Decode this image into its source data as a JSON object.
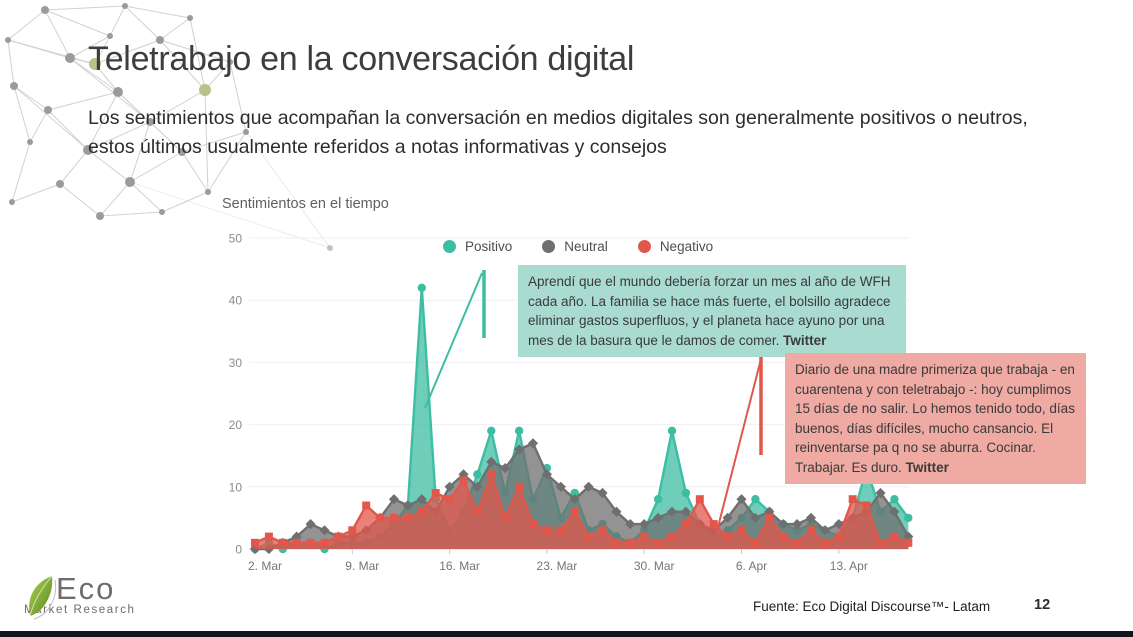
{
  "slide": {
    "title": "Teletrabajo en la conversación digital",
    "subtitle": "Los sentimientos que acompañan la conversación en medios digitales son generalmente positivos o neutros, estos últimos usualmente referidos a notas informativas y consejos"
  },
  "chart_data": {
    "type": "area",
    "title": "Sentimientos en el tiempo",
    "xlabel": "",
    "ylabel": "",
    "ylim": [
      0,
      50
    ],
    "yticks": [
      0,
      10,
      20,
      30,
      40,
      50
    ],
    "grid": true,
    "legend_position": "top-center",
    "x_tick_labels": [
      "2. Mar",
      "9. Mar",
      "16. Mar",
      "23. Mar",
      "30. Mar",
      "6. Apr",
      "13. Apr"
    ],
    "x_tick_indices": [
      0,
      7,
      14,
      21,
      28,
      35,
      42
    ],
    "x": [
      "2 Mar",
      "3 Mar",
      "4 Mar",
      "5 Mar",
      "6 Mar",
      "7 Mar",
      "8 Mar",
      "9 Mar",
      "10 Mar",
      "11 Mar",
      "12 Mar",
      "13 Mar",
      "14 Mar",
      "15 Mar",
      "16 Mar",
      "17 Mar",
      "18 Mar",
      "19 Mar",
      "20 Mar",
      "21 Mar",
      "22 Mar",
      "23 Mar",
      "24 Mar",
      "25 Mar",
      "26 Mar",
      "27 Mar",
      "28 Mar",
      "29 Mar",
      "30 Mar",
      "31 Mar",
      "1 Apr",
      "2 Apr",
      "3 Apr",
      "4 Apr",
      "5 Apr",
      "6 Apr",
      "7 Apr",
      "8 Apr",
      "9 Apr",
      "10 Apr",
      "11 Apr",
      "12 Apr",
      "13 Apr",
      "14 Apr",
      "15 Apr",
      "16 Apr",
      "17 Apr",
      "18 Apr"
    ],
    "series": [
      {
        "name": "Positivo",
        "color": "#3dbea3",
        "marker": "circle",
        "values": [
          0,
          1,
          0,
          1,
          1,
          0,
          1,
          1,
          1,
          2,
          4,
          7,
          42,
          8,
          3,
          6,
          12,
          19,
          9,
          19,
          8,
          13,
          5,
          9,
          3,
          4,
          2,
          1,
          3,
          8,
          19,
          9,
          4,
          2,
          3,
          5,
          8,
          6,
          4,
          3,
          4,
          3,
          2,
          5,
          13,
          6,
          8,
          5
        ]
      },
      {
        "name": "Neutral",
        "color": "#6f6f6f",
        "marker": "diamond",
        "values": [
          0,
          0,
          1,
          2,
          4,
          3,
          2,
          2,
          3,
          5,
          8,
          7,
          8,
          6,
          10,
          12,
          10,
          14,
          13,
          16,
          17,
          12,
          10,
          8,
          10,
          9,
          6,
          4,
          4,
          5,
          6,
          6,
          4,
          3,
          5,
          8,
          5,
          6,
          4,
          4,
          5,
          3,
          4,
          5,
          6,
          9,
          6,
          2
        ]
      },
      {
        "name": "Negativo",
        "color": "#e2574c",
        "marker": "square",
        "values": [
          1,
          2,
          1,
          1,
          1,
          1,
          2,
          3,
          7,
          5,
          5,
          5,
          6,
          9,
          8,
          11,
          6,
          12,
          5,
          10,
          4,
          3,
          3,
          6,
          2,
          3,
          1,
          1,
          2,
          1,
          2,
          4,
          8,
          4,
          2,
          3,
          1,
          5,
          2,
          1,
          3,
          1,
          2,
          8,
          7,
          1,
          2,
          1
        ]
      }
    ]
  },
  "annotations": {
    "positive": {
      "text": "Aprendí que el mundo debería forzar un mes al año de WFH cada año. La familia se hace más fuerte, el bolsillo agradece eliminar gastos superfluos, y el planeta hace ayuno por una mes de la basura que le damos de comer.",
      "source": "Twitter",
      "bg": "#aadbd0"
    },
    "negative": {
      "text": "Diario de una madre primeriza que trabaja - en cuarentena y con teletrabajo -: hoy cumplimos 15 días de no salir. Lo hemos tenido todo, días buenos, días difíciles, mucho cansancio. El reinventarse pa q no se aburra. Cocinar. Trabajar. Es duro.",
      "source": "Twitter",
      "bg": "#eeaaa3"
    }
  },
  "footer": {
    "source": "Fuente: Eco Digital Discourse™- Latam",
    "page": "12"
  },
  "logo": {
    "name": "Eco",
    "tagline": "Market Research"
  },
  "colors": {
    "positive": "#3dbea3",
    "neutral": "#6f6f6f",
    "negative": "#e2574c",
    "quote_positive_bg": "#aadbd0",
    "quote_negative_bg": "#eeaaa3"
  }
}
